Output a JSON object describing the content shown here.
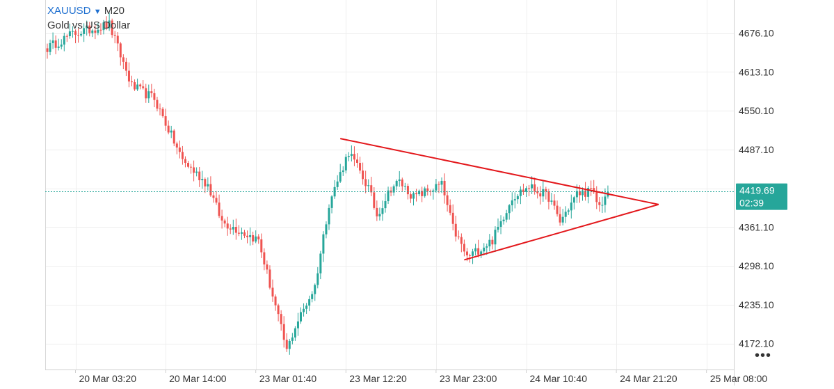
{
  "legend": {
    "symbol": "XAUUSD",
    "arrow": "▼",
    "timeframe": "M20",
    "description": "Gold vs US Dollar"
  },
  "current_price": {
    "value": "4419.69",
    "countdown": "02:39",
    "color": "#26a69a"
  },
  "more_icon": "•••",
  "colors": {
    "bull": "#26a69a",
    "bear": "#ef5350",
    "trendline": "#e3171b",
    "grid": "#eeeeee",
    "axis_text": "#333333",
    "price_line": "#26a69a"
  },
  "chart_data": {
    "type": "candlestick",
    "title": "",
    "symbol": "XAUUSD",
    "timeframe": "M20",
    "xlabel": "",
    "ylabel": "",
    "ylim": [
      4130,
      4730
    ],
    "y_ticks": [
      4172.1,
      4235.1,
      4298.1,
      4361.1,
      4424.1,
      4487.1,
      4550.1,
      4613.1,
      4676.1
    ],
    "y_tick_labels": [
      "4172.10",
      "4235.10",
      "4298.10",
      "4361.10",
      "",
      "4487.10",
      "4550.10",
      "4613.10",
      "4676.10"
    ],
    "x_ticks": [
      {
        "label": "20 Mar 03:20",
        "bar": 10
      },
      {
        "label": "20 Mar 14:00",
        "bar": 42
      },
      {
        "label": "23 Mar 01:40",
        "bar": 74
      },
      {
        "label": "23 Mar 12:20",
        "bar": 106
      },
      {
        "label": "23 Mar 23:00",
        "bar": 138
      },
      {
        "label": "24 Mar 10:40",
        "bar": 170
      },
      {
        "label": "24 Mar 21:20",
        "bar": 202
      },
      {
        "label": "25 Mar 08:00",
        "bar": 234
      }
    ],
    "grid": true,
    "current_price": 4419.69,
    "key_points": [
      {
        "bar": 0,
        "close": 4652
      },
      {
        "bar": 9,
        "close": 4675
      },
      {
        "bar": 22,
        "close": 4690
      },
      {
        "bar": 30,
        "close": 4590
      },
      {
        "bar": 38,
        "close": 4570
      },
      {
        "bar": 48,
        "close": 4470
      },
      {
        "bar": 57,
        "close": 4430
      },
      {
        "bar": 62,
        "close": 4370
      },
      {
        "bar": 75,
        "close": 4340
      },
      {
        "bar": 85,
        "close": 4160
      },
      {
        "bar": 88,
        "close": 4200
      },
      {
        "bar": 95,
        "close": 4265
      },
      {
        "bar": 100,
        "close": 4400
      },
      {
        "bar": 107,
        "close": 4484
      },
      {
        "bar": 114,
        "close": 4425
      },
      {
        "bar": 117,
        "close": 4380
      },
      {
        "bar": 122,
        "close": 4425
      },
      {
        "bar": 125,
        "close": 4435
      },
      {
        "bar": 130,
        "close": 4410
      },
      {
        "bar": 140,
        "close": 4430
      },
      {
        "bar": 144,
        "close": 4360
      },
      {
        "bar": 149,
        "close": 4312
      },
      {
        "bar": 158,
        "close": 4340
      },
      {
        "bar": 165,
        "close": 4410
      },
      {
        "bar": 171,
        "close": 4427
      },
      {
        "bar": 178,
        "close": 4410
      },
      {
        "bar": 182,
        "close": 4370
      },
      {
        "bar": 188,
        "close": 4415
      },
      {
        "bar": 193,
        "close": 4420
      },
      {
        "bar": 196,
        "close": 4395
      },
      {
        "bar": 199,
        "close": 4418
      }
    ],
    "trendlines": [
      {
        "bar1": 104,
        "price1": 4505,
        "bar2": 217,
        "price2": 4398
      },
      {
        "bar1": 148,
        "price1": 4308,
        "bar2": 217,
        "price2": 4398
      }
    ]
  }
}
